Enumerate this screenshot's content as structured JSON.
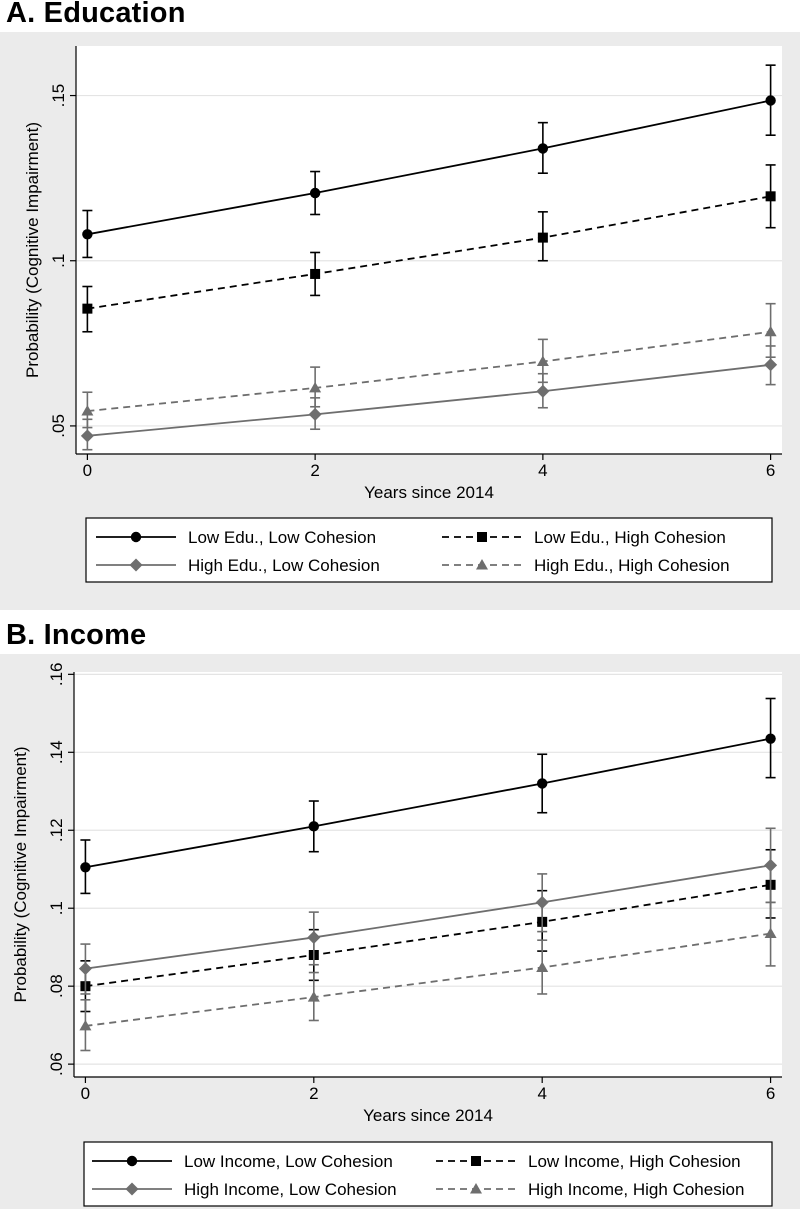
{
  "chart_data": [
    {
      "type": "line",
      "title": "A. Education",
      "xlabel": "Years since 2014",
      "ylabel": "Probability (Cognitive Impairment)",
      "x": [
        0,
        2,
        4,
        6
      ],
      "xticks": [
        0,
        2,
        4,
        6
      ],
      "xtick_labels": [
        "0",
        "2",
        "4",
        "6"
      ],
      "xlim": [
        -0.1,
        6.1
      ],
      "ylim": [
        0.0415,
        0.165
      ],
      "yticks": [
        0.05,
        0.1,
        0.15
      ],
      "ytick_labels": [
        ".05",
        ".1",
        ".15"
      ],
      "grid": true,
      "legend_position": "bottom",
      "series": [
        {
          "name": "Low Edu., Low Cohesion",
          "color": "#000000",
          "dash": "solid",
          "marker": "circle",
          "values": [
            0.108,
            0.1205,
            0.134,
            0.1485
          ],
          "lower": [
            0.101,
            0.114,
            0.1265,
            0.138
          ],
          "upper": [
            0.1152,
            0.127,
            0.1418,
            0.1592
          ]
        },
        {
          "name": "Low Edu., High Cohesion",
          "color": "#000000",
          "dash": "dashed",
          "marker": "square",
          "values": [
            0.0855,
            0.096,
            0.107,
            0.1195
          ],
          "lower": [
            0.0785,
            0.0895,
            0.1,
            0.11
          ],
          "upper": [
            0.0922,
            0.1025,
            0.1148,
            0.129
          ]
        },
        {
          "name": "High Edu., Low Cohesion",
          "color": "#6e6e6e",
          "dash": "solid",
          "marker": "diamond",
          "values": [
            0.047,
            0.0535,
            0.0605,
            0.0685
          ],
          "lower": [
            0.0428,
            0.049,
            0.0555,
            0.0625
          ],
          "upper": [
            0.052,
            0.0585,
            0.0658,
            0.0742
          ]
        },
        {
          "name": "High Edu., High Cohesion",
          "color": "#6e6e6e",
          "dash": "dashed",
          "marker": "triangle",
          "values": [
            0.0545,
            0.0615,
            0.0695,
            0.0785
          ],
          "lower": [
            0.0495,
            0.0558,
            0.0632,
            0.0708
          ],
          "upper": [
            0.0602,
            0.0678,
            0.0762,
            0.087
          ]
        }
      ]
    },
    {
      "type": "line",
      "title": "B. Income",
      "xlabel": "Years since 2014",
      "ylabel": "Probability (Cognitive Impairment)",
      "x": [
        0,
        2,
        4,
        6
      ],
      "xticks": [
        0,
        2,
        4,
        6
      ],
      "xtick_labels": [
        "0",
        "2",
        "4",
        "6"
      ],
      "xlim": [
        -0.1,
        6.1
      ],
      "ylim": [
        0.0567,
        0.1606
      ],
      "yticks": [
        0.06,
        0.08,
        0.1,
        0.12,
        0.14,
        0.16
      ],
      "ytick_labels": [
        ".06",
        ".08",
        ".1",
        ".12",
        ".14",
        ".16"
      ],
      "grid": true,
      "legend_position": "bottom",
      "series": [
        {
          "name": "Low Income, Low Cohesion",
          "color": "#000000",
          "dash": "solid",
          "marker": "circle",
          "values": [
            0.1105,
            0.121,
            0.132,
            0.1435
          ],
          "lower": [
            0.1038,
            0.1145,
            0.1245,
            0.1335
          ],
          "upper": [
            0.1175,
            0.1275,
            0.1395,
            0.1538
          ]
        },
        {
          "name": "Low Income, High Cohesion",
          "color": "#000000",
          "dash": "dashed",
          "marker": "square",
          "values": [
            0.08,
            0.088,
            0.0965,
            0.106
          ],
          "lower": [
            0.0735,
            0.0815,
            0.089,
            0.0975
          ],
          "upper": [
            0.0865,
            0.0945,
            0.1045,
            0.115
          ]
        },
        {
          "name": "High Income, Low Cohesion",
          "color": "#6e6e6e",
          "dash": "solid",
          "marker": "diamond",
          "values": [
            0.0845,
            0.0925,
            0.1015,
            0.111
          ],
          "lower": [
            0.078,
            0.0855,
            0.094,
            0.1015
          ],
          "upper": [
            0.0908,
            0.099,
            0.1088,
            0.1205
          ]
        },
        {
          "name": "High Income, High Cohesion",
          "color": "#6e6e6e",
          "dash": "dashed",
          "marker": "triangle",
          "values": [
            0.0698,
            0.0772,
            0.0848,
            0.0935
          ],
          "lower": [
            0.0635,
            0.0712,
            0.078,
            0.0852
          ],
          "upper": [
            0.0765,
            0.0835,
            0.0918,
            0.1015
          ]
        }
      ]
    }
  ]
}
